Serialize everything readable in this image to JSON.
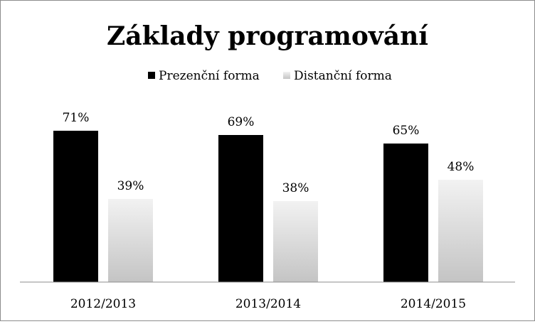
{
  "colors": {
    "series1": "#000000",
    "series2_top": "#f2f2f2",
    "series2_bottom": "#c4c4c4",
    "axis": "#8c8c8c"
  },
  "chart_data": {
    "type": "bar",
    "title": "Základy programování",
    "xlabel": "",
    "ylabel": "",
    "categories": [
      "2012/2013",
      "2013/2014",
      "2014/2015"
    ],
    "series": [
      {
        "name": "Prezenční forma",
        "values": [
          71,
          69,
          65
        ],
        "labels": [
          "71%",
          "69%",
          "65%"
        ]
      },
      {
        "name": "Distanční forma",
        "values": [
          39,
          38,
          48
        ],
        "labels": [
          "39%",
          "38%",
          "48%"
        ]
      }
    ],
    "ylim": [
      0,
      100
    ],
    "unit": "%",
    "grid": false,
    "legend": "top-center"
  }
}
